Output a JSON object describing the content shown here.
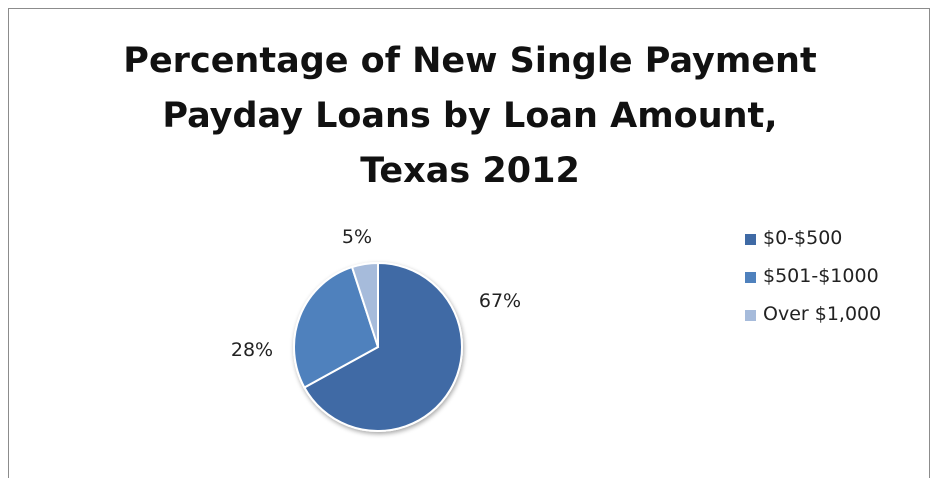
{
  "chart_data": {
    "type": "pie",
    "title_lines": [
      "Percentage of New Single Payment",
      "Payday Loans by Loan Amount,",
      "Texas 2012"
    ],
    "categories": [
      "$0-$500",
      "$501-$1000",
      "Over $1,000"
    ],
    "values": [
      67,
      28,
      5
    ],
    "data_labels": [
      "67%",
      "28%",
      "5%"
    ],
    "colors": [
      "#3f6aa5",
      "#4f81bd",
      "#a6bbdb"
    ],
    "legend_position": "right"
  }
}
